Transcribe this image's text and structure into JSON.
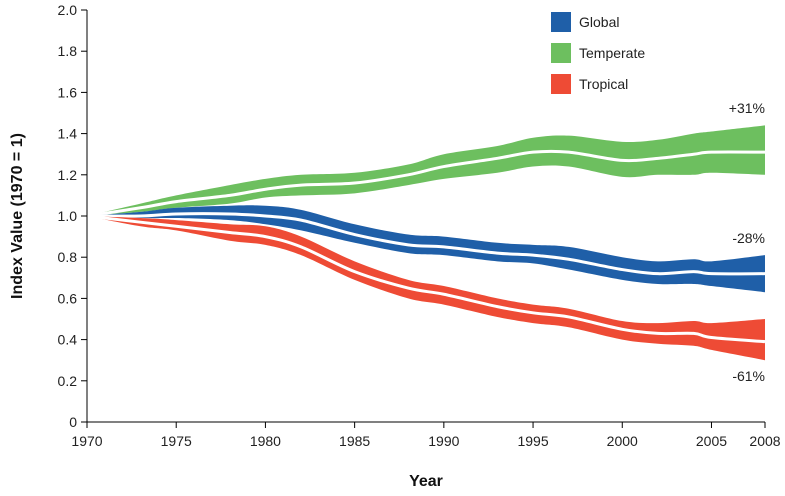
{
  "chart_data": {
    "type": "area",
    "title": "",
    "xlabel": "Year",
    "ylabel": "Index Value (1970 = 1)",
    "xlim": [
      1970,
      2008
    ],
    "ylim": [
      0,
      2.0
    ],
    "x_ticks": [
      1970,
      1975,
      1980,
      1985,
      1990,
      1995,
      2000,
      2005,
      2008
    ],
    "y_ticks": [
      "0",
      "0.2",
      "0.4",
      "0.6",
      "0.8",
      "1.0",
      "1.2",
      "1.4",
      "1.6",
      "1.8",
      "2.0"
    ],
    "grid": false,
    "legend_position": "top-right",
    "years": [
      1970,
      1973,
      1975,
      1978,
      1980,
      1982,
      1985,
      1988,
      1990,
      1993,
      1995,
      1997,
      2000,
      2002,
      2004,
      2005,
      2008
    ],
    "series": [
      {
        "name": "Global",
        "color": "#1f5fa8",
        "upper": [
          1.0,
          1.02,
          1.04,
          1.05,
          1.05,
          1.03,
          0.96,
          0.91,
          0.9,
          0.87,
          0.86,
          0.85,
          0.8,
          0.78,
          0.79,
          0.78,
          0.81
        ],
        "center": [
          1.0,
          1.0,
          1.01,
          1.01,
          1.0,
          0.98,
          0.91,
          0.86,
          0.85,
          0.82,
          0.81,
          0.79,
          0.74,
          0.72,
          0.73,
          0.72,
          0.72
        ],
        "lower": [
          1.0,
          0.99,
          0.99,
          0.98,
          0.96,
          0.93,
          0.87,
          0.82,
          0.81,
          0.78,
          0.77,
          0.74,
          0.69,
          0.67,
          0.67,
          0.66,
          0.63
        ]
      },
      {
        "name": "Temperate",
        "color": "#6dbf5f",
        "upper": [
          1.0,
          1.06,
          1.1,
          1.15,
          1.18,
          1.2,
          1.21,
          1.25,
          1.3,
          1.34,
          1.38,
          1.39,
          1.36,
          1.37,
          1.4,
          1.41,
          1.44
        ],
        "center": [
          1.0,
          1.04,
          1.07,
          1.1,
          1.13,
          1.15,
          1.16,
          1.2,
          1.24,
          1.28,
          1.31,
          1.31,
          1.27,
          1.28,
          1.3,
          1.31,
          1.31
        ],
        "lower": [
          1.0,
          1.02,
          1.04,
          1.06,
          1.09,
          1.1,
          1.11,
          1.15,
          1.18,
          1.21,
          1.24,
          1.24,
          1.19,
          1.2,
          1.2,
          1.21,
          1.2
        ]
      },
      {
        "name": "Tropical",
        "color": "#ee4b35",
        "upper": [
          1.0,
          0.99,
          0.98,
          0.96,
          0.95,
          0.9,
          0.78,
          0.69,
          0.66,
          0.6,
          0.57,
          0.55,
          0.49,
          0.48,
          0.49,
          0.48,
          0.5
        ],
        "center": [
          1.0,
          0.97,
          0.95,
          0.92,
          0.9,
          0.85,
          0.73,
          0.65,
          0.62,
          0.56,
          0.53,
          0.51,
          0.45,
          0.43,
          0.43,
          0.41,
          0.39
        ],
        "lower": [
          1.0,
          0.95,
          0.93,
          0.88,
          0.86,
          0.81,
          0.69,
          0.6,
          0.57,
          0.51,
          0.48,
          0.46,
          0.4,
          0.38,
          0.37,
          0.35,
          0.3
        ]
      }
    ],
    "annotations": [
      {
        "text": "+31%",
        "x": 2008,
        "y": 1.5,
        "anchor": "end"
      },
      {
        "text": "-28%",
        "x": 2008,
        "y": 0.87,
        "anchor": "end"
      },
      {
        "text": "-61%",
        "x": 2008,
        "y": 0.2,
        "anchor": "end"
      }
    ]
  }
}
